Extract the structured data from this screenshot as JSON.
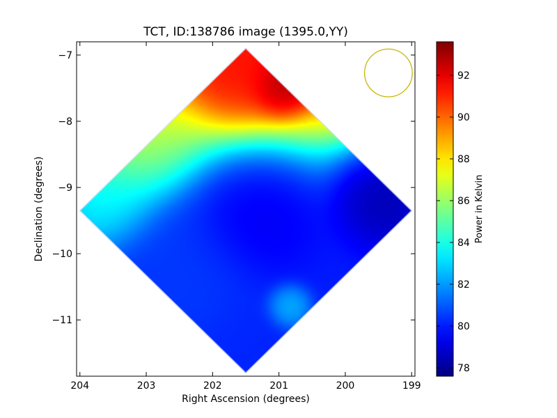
{
  "chart_data": {
    "type": "heatmap",
    "title": "TCT, ID:138786 image (1395.0,YY)",
    "xlabel": "Right Ascension (degrees)",
    "ylabel": "Declination (degrees)",
    "xlim": [
      204.05,
      198.95
    ],
    "ylim": [
      -11.85,
      -6.8
    ],
    "xticks": [
      204,
      203,
      202,
      201,
      200,
      199
    ],
    "yticks": [
      -7,
      -8,
      -9,
      -10,
      -11
    ],
    "xtick_labels": [
      "204",
      "203",
      "202",
      "201",
      "200",
      "199"
    ],
    "ytick_labels": [
      "−7",
      "−8",
      "−9",
      "−10",
      "−11"
    ],
    "footprint_corners": {
      "top": [
        201.5,
        -6.9
      ],
      "right": [
        199.0,
        -9.35
      ],
      "bottom": [
        201.5,
        -11.8
      ],
      "left": [
        204.0,
        -9.35
      ]
    },
    "beam_circle": {
      "ra": 199.35,
      "dec": -7.27,
      "radius_deg": 0.36,
      "color": "#c8b400"
    },
    "colorbar": {
      "label": "Power in Kelvin",
      "min": 77.6,
      "max": 93.6,
      "ticks": [
        78,
        80,
        82,
        84,
        86,
        88,
        90,
        92
      ],
      "tick_labels": [
        "78",
        "80",
        "82",
        "84",
        "86",
        "88",
        "90",
        "92"
      ],
      "colormap": "jet"
    },
    "field_features": [
      {
        "ra": 200.95,
        "dec": -7.45,
        "value": 93.4,
        "spread": 0.35
      },
      {
        "ra": 201.6,
        "dec": -7.2,
        "value": 91.5,
        "spread": 0.55
      },
      {
        "ra": 203.2,
        "dec": -8.3,
        "value": 86.5,
        "spread": 0.7
      },
      {
        "ra": 203.7,
        "dec": -9.2,
        "value": 84.2,
        "spread": 0.6
      },
      {
        "ra": 199.4,
        "dec": -9.1,
        "value": 77.8,
        "spread": 0.6
      },
      {
        "ra": 201.3,
        "dec": -9.4,
        "value": 79.2,
        "spread": 0.7
      },
      {
        "ra": 202.5,
        "dec": -10.4,
        "value": 80.6,
        "spread": 0.9
      },
      {
        "ra": 200.85,
        "dec": -10.8,
        "value": 83.0,
        "spread": 0.25
      },
      {
        "ra": 201.5,
        "dec": -11.4,
        "value": 80.2,
        "spread": 0.5
      }
    ],
    "gradient_model": {
      "top_value": 91.0,
      "bottom_value": 80.0,
      "transition_dec": -8.3
    }
  }
}
